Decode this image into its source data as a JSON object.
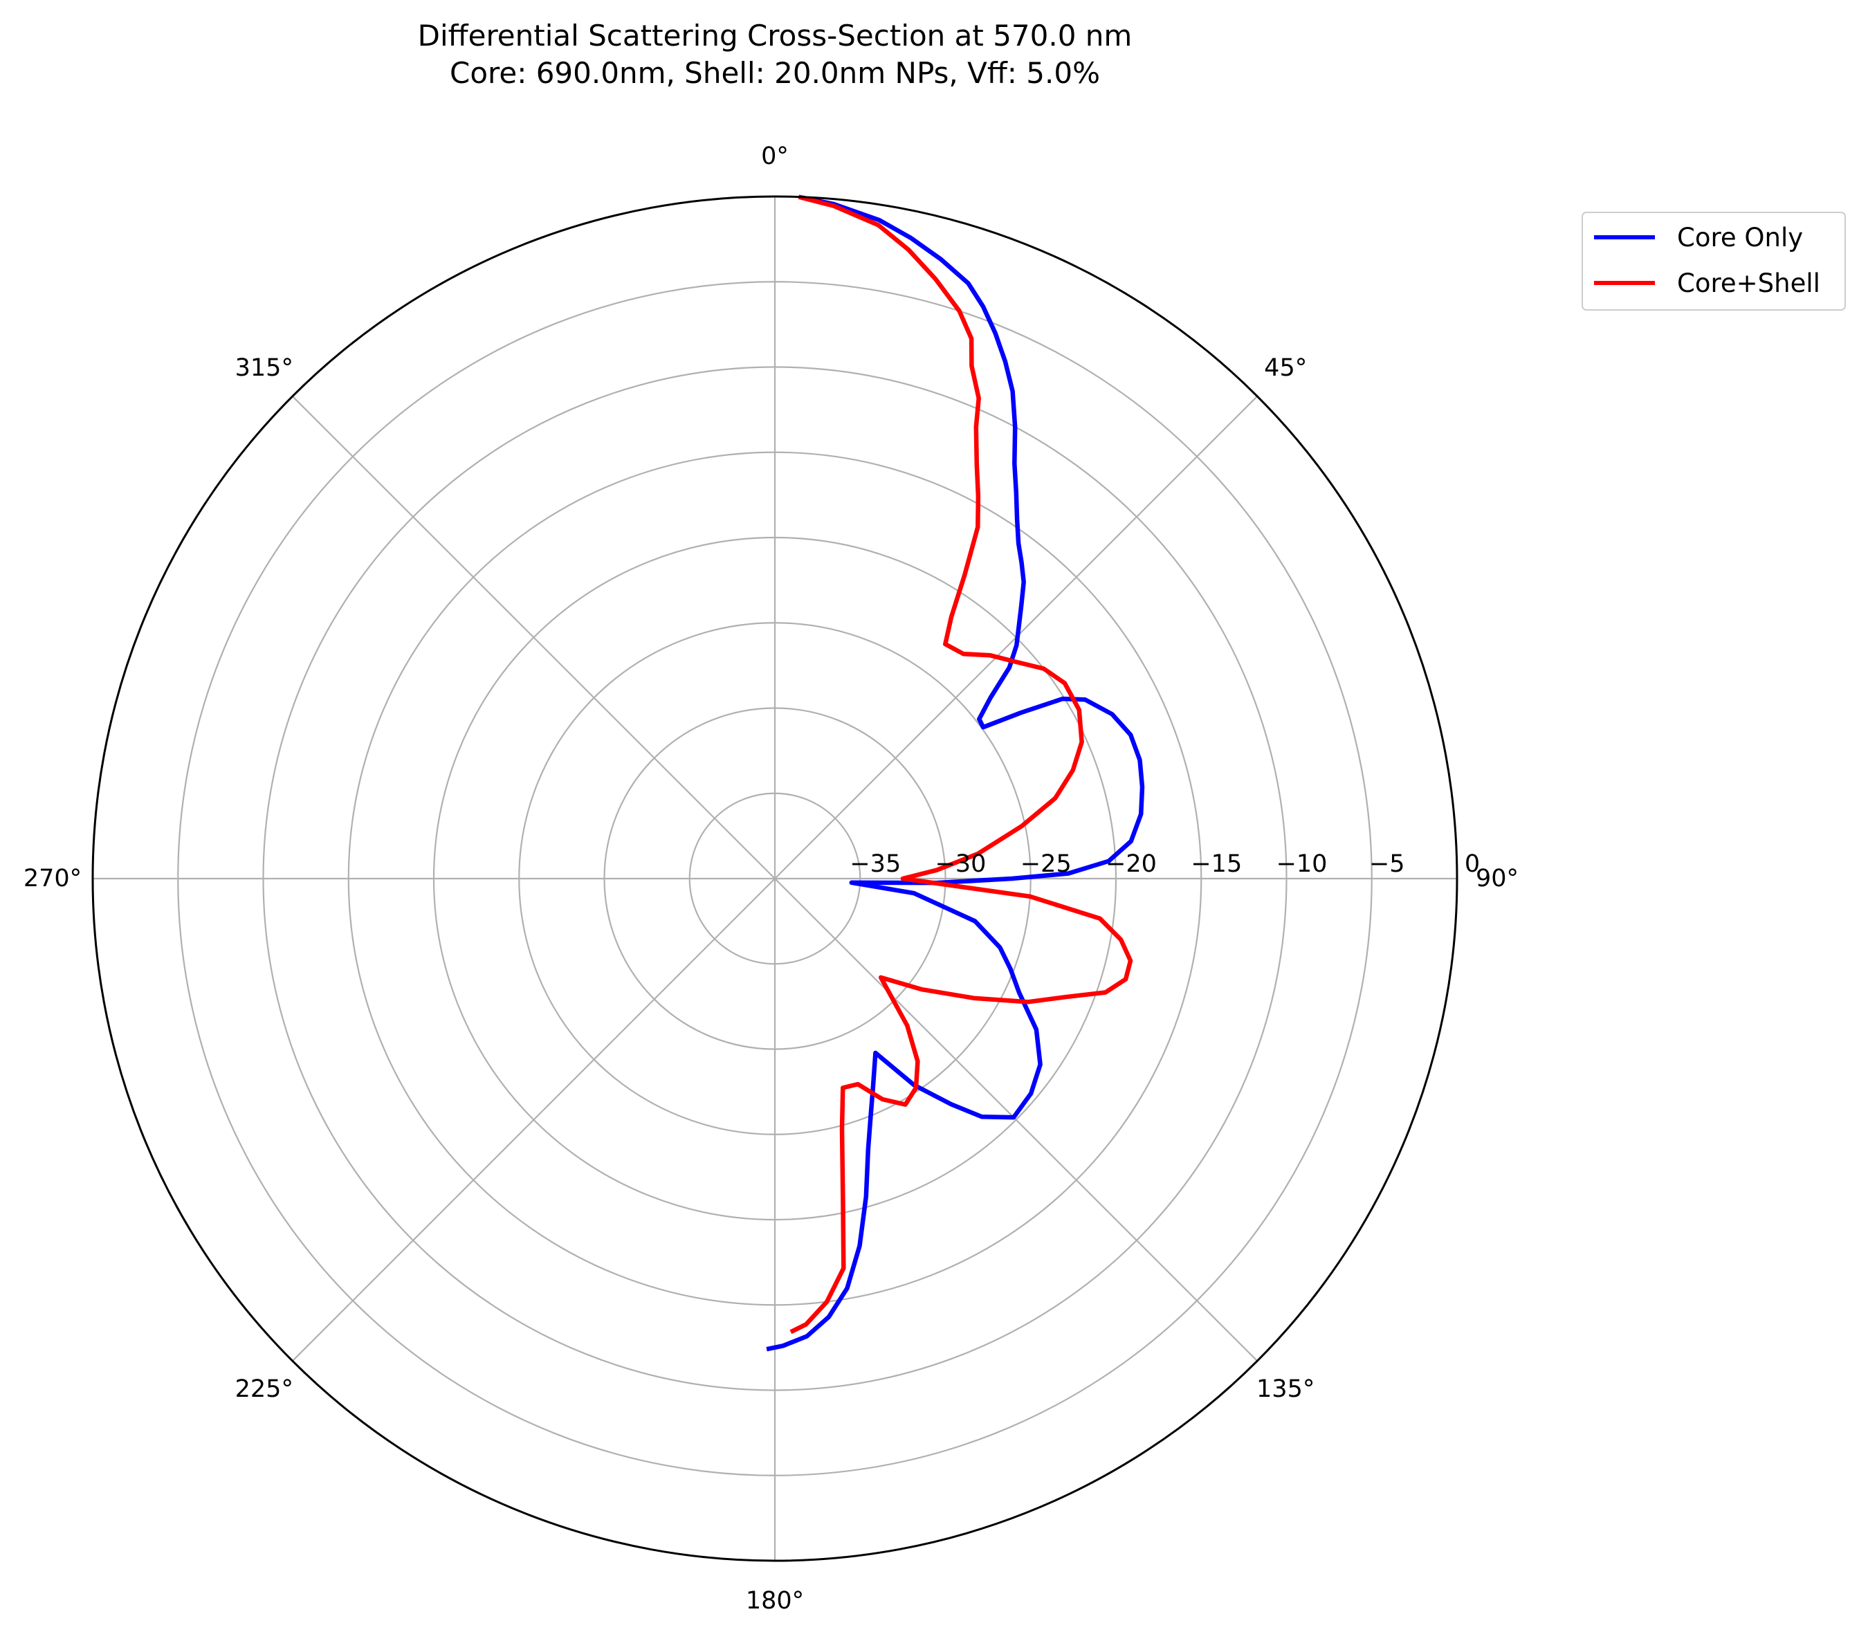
{
  "chart_data": {
    "type": "polar-line",
    "title": "Differential Scattering Cross-Section at 570.0 nm",
    "subtitle": "Core: 690.0nm, Shell: 20.0nm NPs, Vff: 5.0%",
    "angle_unit": "degrees",
    "angle_direction": "clockwise",
    "zero_location": "top",
    "r_range": [
      -40,
      0
    ],
    "r_ticks": [
      "−35",
      "−30",
      "−25",
      "−20",
      "−15",
      "−10",
      "−5",
      "0"
    ],
    "r_tick_values": [
      -35,
      -30,
      -25,
      -20,
      -15,
      -10,
      -5,
      0
    ],
    "angle_ticks": [
      "0°",
      "45°",
      "90°",
      "135°",
      "180°",
      "225°",
      "270°",
      "315°"
    ],
    "angle_tick_values": [
      0,
      45,
      90,
      135,
      180,
      225,
      270,
      315
    ],
    "grid": true,
    "legend": {
      "placement": "top-right outside",
      "entries": [
        "Core Only",
        "Core+Shell"
      ]
    },
    "series": [
      {
        "name": "Core Only",
        "color": "#0000ff",
        "points": [
          [
            2,
            0.0
          ],
          [
            5,
            -0.3
          ],
          [
            9,
            -0.9
          ],
          [
            12,
            -1.6
          ],
          [
            15,
            -2.4
          ],
          [
            18,
            -3.3
          ],
          [
            20,
            -4.3
          ],
          [
            22,
            -5.5
          ],
          [
            24,
            -6.8
          ],
          [
            26,
            -8.2
          ],
          [
            28,
            -10.0
          ],
          [
            30,
            -11.9
          ],
          [
            32,
            -13.3
          ],
          [
            34,
            -14.6
          ],
          [
            36,
            -15.7
          ],
          [
            38,
            -16.5
          ],
          [
            40,
            -17.3
          ],
          [
            42,
            -18.4
          ],
          [
            44,
            -19.4
          ],
          [
            46,
            -20.3
          ],
          [
            48,
            -21.5
          ],
          [
            50,
            -23.5
          ],
          [
            52,
            -24.8
          ],
          [
            54,
            -24.9
          ],
          [
            56,
            -22.6
          ],
          [
            58,
            -20.1
          ],
          [
            60,
            -19.0
          ],
          [
            64,
            -18.0
          ],
          [
            68,
            -17.5
          ],
          [
            72,
            -17.5
          ],
          [
            76,
            -17.8
          ],
          [
            80,
            -18.2
          ],
          [
            84,
            -19.0
          ],
          [
            87,
            -20.4
          ],
          [
            89,
            -22.8
          ],
          [
            90,
            -26.1
          ],
          [
            91.5,
            -30.5
          ],
          [
            93,
            -35.5
          ],
          [
            96,
            -31.8
          ],
          [
            102,
            -28.0
          ],
          [
            107,
            -26.2
          ],
          [
            111,
            -25.2
          ],
          [
            115,
            -24.2
          ],
          [
            120,
            -22.3
          ],
          [
            125,
            -21.0
          ],
          [
            130,
            -20.4
          ],
          [
            135,
            -20.2
          ],
          [
            139,
            -21.5
          ],
          [
            142,
            -23.2
          ],
          [
            146,
            -25.4
          ],
          [
            150,
            -28.2
          ],
          [
            155,
            -26.4
          ],
          [
            158,
            -25.0
          ],
          [
            161,
            -23.2
          ],
          [
            164,
            -20.6
          ],
          [
            167,
            -17.9
          ],
          [
            170,
            -15.6
          ],
          [
            173,
            -14.1
          ],
          [
            176,
            -13.1
          ],
          [
            179,
            -12.6
          ],
          [
            181,
            -12.4
          ]
        ]
      },
      {
        "name": "Core+Shell",
        "color": "#ff0000",
        "points": [
          [
            2,
            0.0
          ],
          [
            5,
            -0.4
          ],
          [
            9,
            -1.2
          ],
          [
            12,
            -2.3
          ],
          [
            15,
            -3.6
          ],
          [
            18,
            -5.0
          ],
          [
            20,
            -6.3
          ],
          [
            21,
            -7.8
          ],
          [
            23,
            -9.4
          ],
          [
            24,
            -11.0
          ],
          [
            26,
            -13.0
          ],
          [
            28,
            -14.6
          ],
          [
            30,
            -16.2
          ],
          [
            32,
            -19.0
          ],
          [
            34,
            -21.5
          ],
          [
            36,
            -23.0
          ],
          [
            40,
            -22.8
          ],
          [
            44,
            -21.8
          ],
          [
            48,
            -21.0
          ],
          [
            52,
            -20.0
          ],
          [
            56,
            -19.5
          ],
          [
            61,
            -19.6
          ],
          [
            66,
            -20.3
          ],
          [
            70,
            -21.4
          ],
          [
            74,
            -22.9
          ],
          [
            78,
            -25.2
          ],
          [
            83,
            -28.0
          ],
          [
            87,
            -30.5
          ],
          [
            90,
            -32.5
          ],
          [
            94,
            -25.0
          ],
          [
            97,
            -20.8
          ],
          [
            100,
            -19.4
          ],
          [
            103,
            -18.6
          ],
          [
            106,
            -18.6
          ],
          [
            109,
            -19.5
          ],
          [
            112,
            -21.5
          ],
          [
            116,
            -23.5
          ],
          [
            121,
            -26.4
          ],
          [
            127,
            -29.2
          ],
          [
            133,
            -31.5
          ],
          [
            138,
            -28.4
          ],
          [
            142,
            -26.4
          ],
          [
            146,
            -25.2
          ],
          [
            150,
            -24.7
          ],
          [
            154,
            -25.6
          ],
          [
            158,
            -27.0
          ],
          [
            162,
            -27.1
          ],
          [
            165,
            -24.8
          ],
          [
            168,
            -20.8
          ],
          [
            170,
            -16.8
          ],
          [
            173,
            -15.0
          ],
          [
            176,
            -13.8
          ],
          [
            178,
            -13.4
          ]
        ]
      }
    ]
  }
}
